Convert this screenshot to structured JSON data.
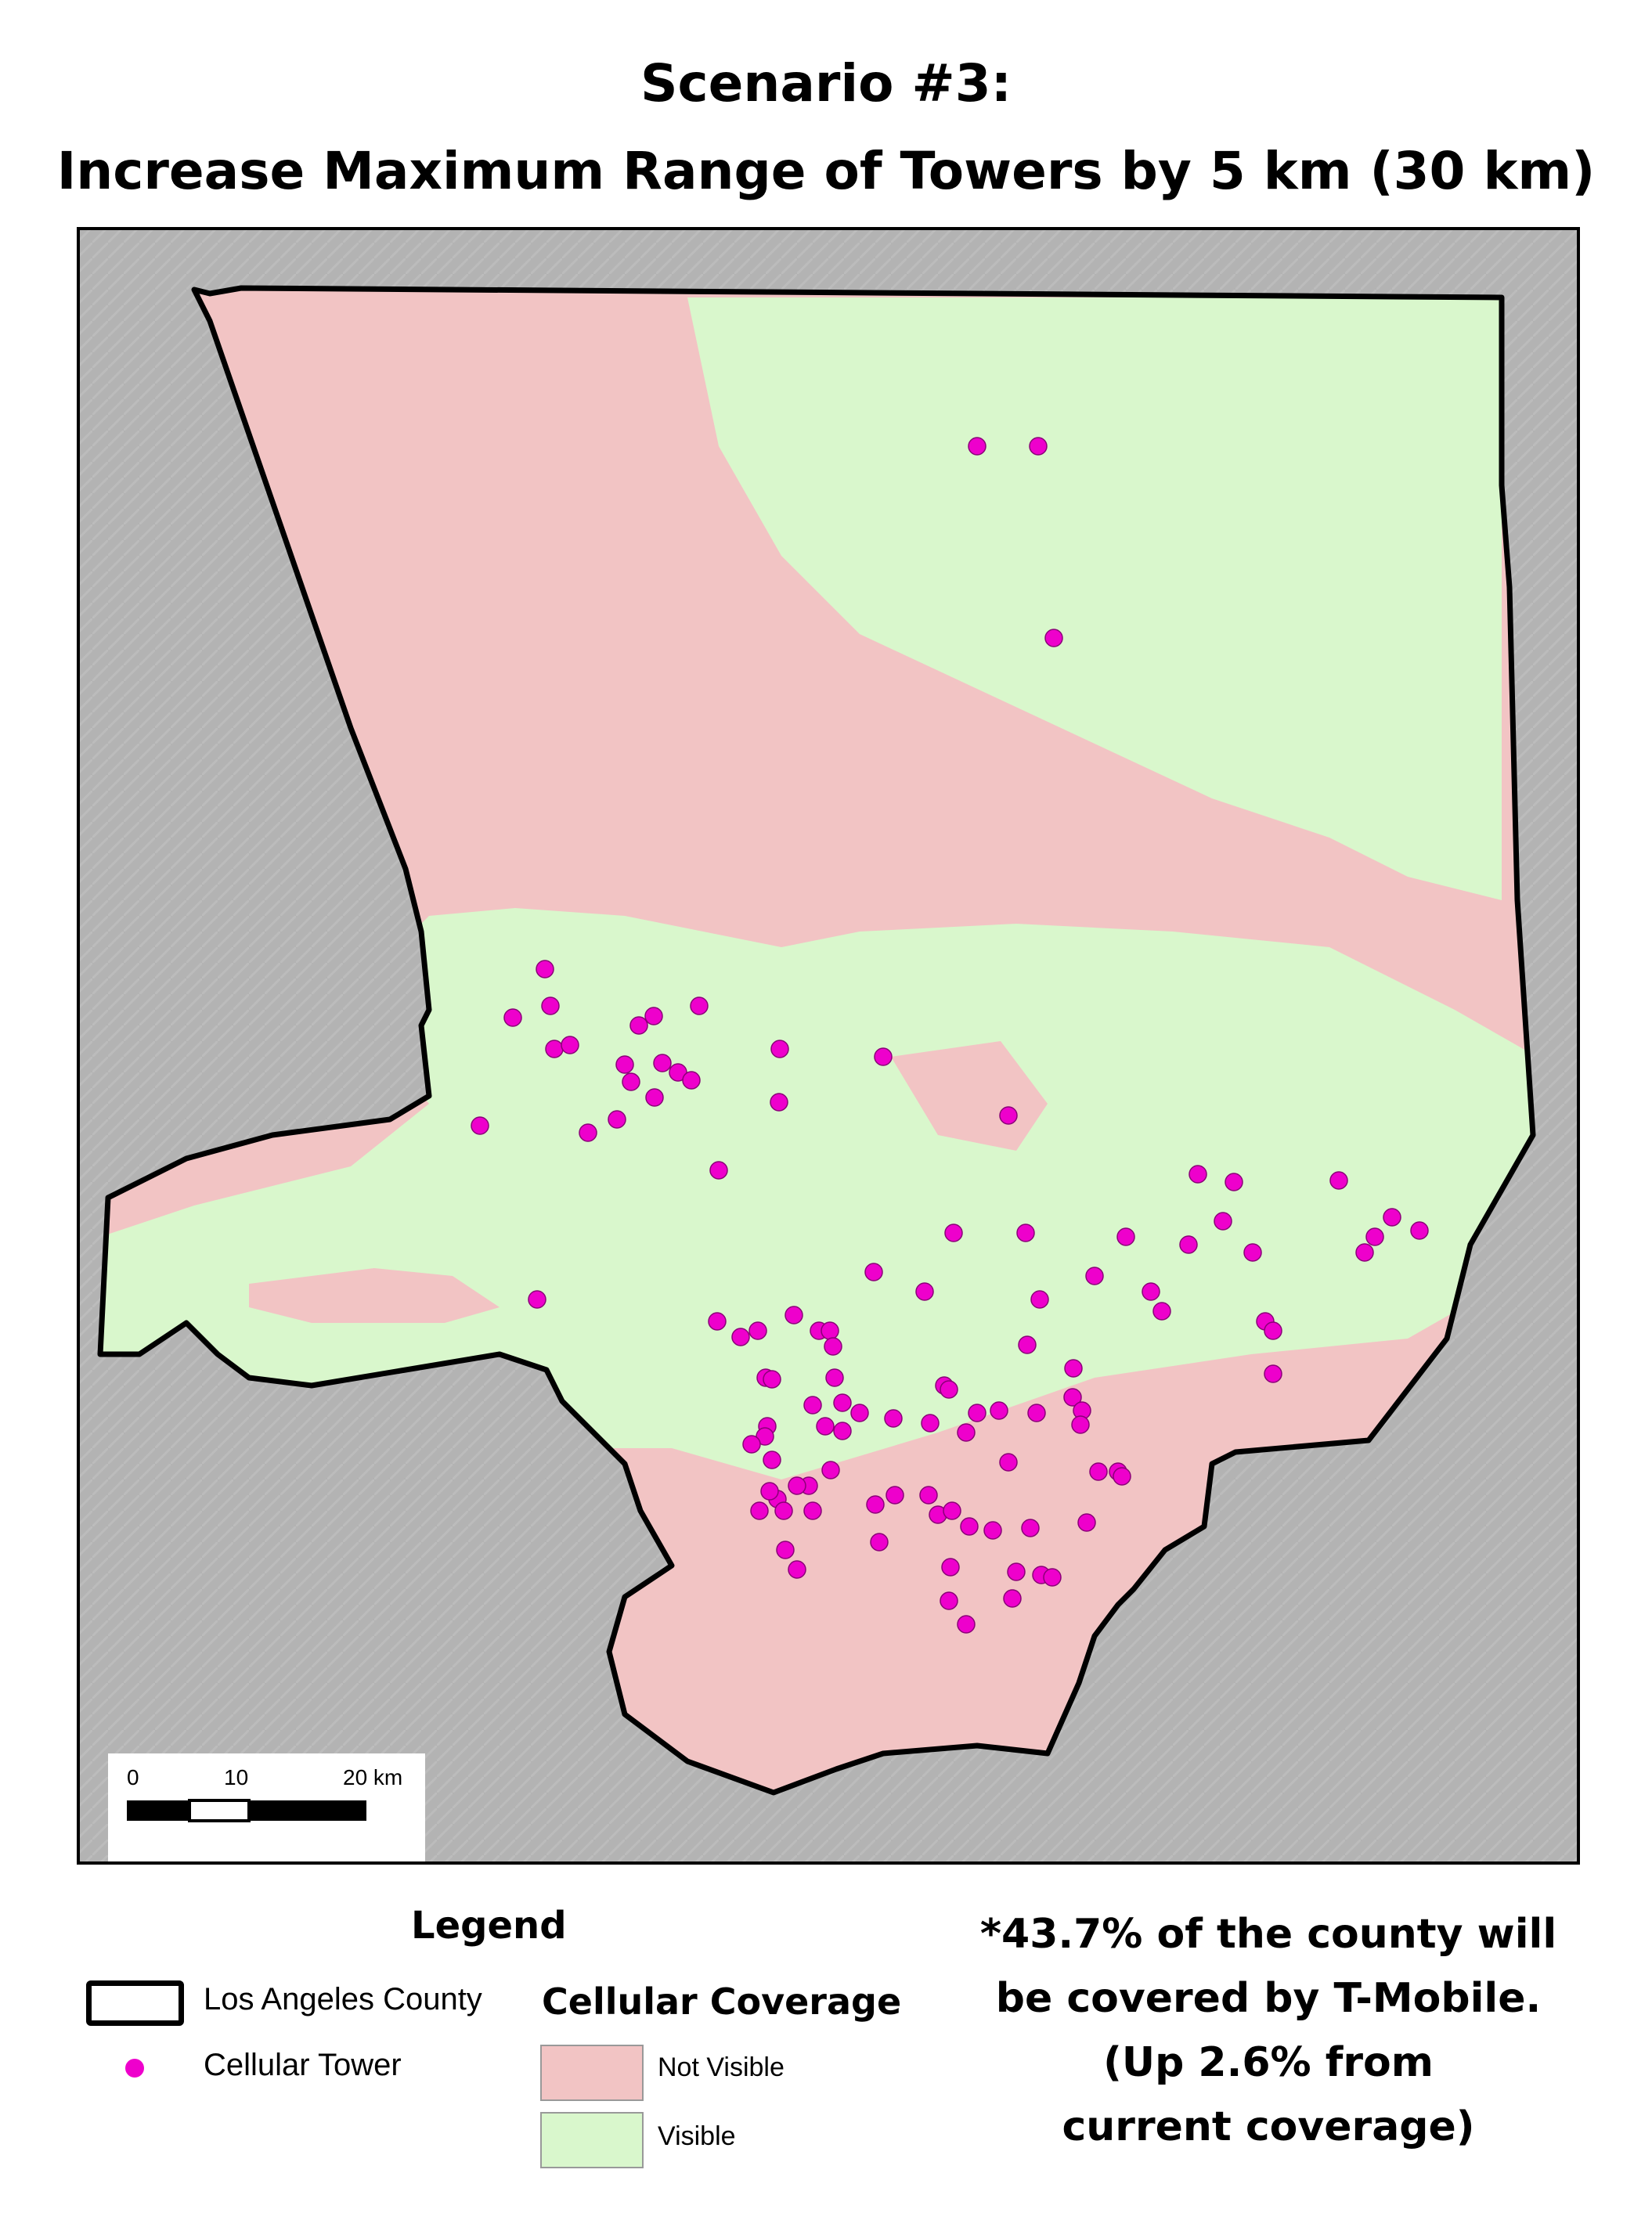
{
  "title": {
    "line1": "Scenario #3:",
    "line2": "Increase Maximum Range of Towers by 5 km (30 km)"
  },
  "colors": {
    "not_visible": "#f2c4c4",
    "visible": "#d9f7cc",
    "tower": "#ee00cc",
    "boundary": "#000000",
    "outside": "#b0b0b0"
  },
  "map": {
    "scale_bar": {
      "labels": [
        "0",
        "10",
        "20 km"
      ]
    }
  },
  "legend": {
    "heading": "Legend",
    "county_label": "Los Angeles County",
    "tower_label": "Cellular Tower",
    "coverage_heading": "Cellular Coverage",
    "coverage_items": [
      {
        "label": "Not Visible",
        "color": "#f2c4c4"
      },
      {
        "label": "Visible",
        "color": "#d9f7cc"
      }
    ]
  },
  "note": {
    "lines": [
      "*43.7% of the county will",
      "be covered by T-Mobile.",
      "(Up 2.6% from",
      "current coverage)"
    ]
  }
}
